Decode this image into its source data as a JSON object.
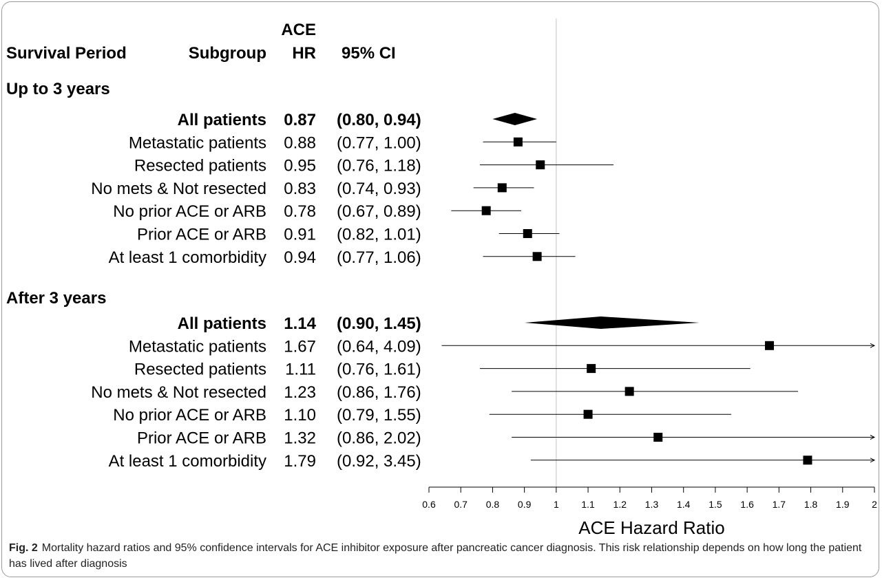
{
  "chart_data": {
    "type": "forest",
    "headers": {
      "period": "Survival Period",
      "subgroup": "Subgroup",
      "hr_line1": "ACE",
      "hr_line2": "HR",
      "ci": "95% CI"
    },
    "xlabel": "ACE Hazard Ratio",
    "xlim": [
      0.6,
      2.0
    ],
    "ticks": [
      "0.6",
      "0.7",
      "0.8",
      "0.9",
      "1",
      "1.1",
      "1.2",
      "1.3",
      "1.4",
      "1.5",
      "1.6",
      "1.7",
      "1.8",
      "1.9",
      "2"
    ],
    "reference_line": 1,
    "groups": [
      {
        "title": "Up to 3 years",
        "rows": [
          {
            "label": "All patients",
            "hr_text": "0.87",
            "ci_text": "(0.80, 0.94)",
            "hr": 0.87,
            "lo": 0.8,
            "hi": 0.94,
            "summary": true
          },
          {
            "label": "Metastatic patients",
            "hr_text": "0.88",
            "ci_text": "(0.77, 1.00)",
            "hr": 0.88,
            "lo": 0.77,
            "hi": 1.0
          },
          {
            "label": "Resected patients",
            "hr_text": "0.95",
            "ci_text": "(0.76, 1.18)",
            "hr": 0.95,
            "lo": 0.76,
            "hi": 1.18
          },
          {
            "label": "No mets & Not resected",
            "hr_text": "0.83",
            "ci_text": "(0.74, 0.93)",
            "hr": 0.83,
            "lo": 0.74,
            "hi": 0.93
          },
          {
            "label": "No prior ACE or ARB",
            "hr_text": "0.78",
            "ci_text": "(0.67, 0.89)",
            "hr": 0.78,
            "lo": 0.67,
            "hi": 0.89
          },
          {
            "label": "Prior ACE or ARB",
            "hr_text": "0.91",
            "ci_text": "(0.82, 1.01)",
            "hr": 0.91,
            "lo": 0.82,
            "hi": 1.01
          },
          {
            "label": "At least 1 comorbidity",
            "hr_text": "0.94",
            "ci_text": "(0.77, 1.06)",
            "hr": 0.94,
            "lo": 0.77,
            "hi": 1.06
          }
        ]
      },
      {
        "title": "After 3 years",
        "rows": [
          {
            "label": "All patients",
            "hr_text": "1.14",
            "ci_text": "(0.90, 1.45)",
            "hr": 1.14,
            "lo": 0.9,
            "hi": 1.45,
            "summary": true
          },
          {
            "label": "Metastatic patients",
            "hr_text": "1.67",
            "ci_text": "(0.64, 4.09)",
            "hr": 1.67,
            "lo": 0.64,
            "hi": 4.09
          },
          {
            "label": "Resected patients",
            "hr_text": "1.11",
            "ci_text": "(0.76, 1.61)",
            "hr": 1.11,
            "lo": 0.76,
            "hi": 1.61
          },
          {
            "label": "No mets & Not resected",
            "hr_text": "1.23",
            "ci_text": "(0.86, 1.76)",
            "hr": 1.23,
            "lo": 0.86,
            "hi": 1.76
          },
          {
            "label": "No prior ACE or ARB",
            "hr_text": "1.10",
            "ci_text": "(0.79, 1.55)",
            "hr": 1.1,
            "lo": 0.79,
            "hi": 1.55
          },
          {
            "label": "Prior ACE or ARB",
            "hr_text": "1.32",
            "ci_text": "(0.86, 2.02)",
            "hr": 1.32,
            "lo": 0.86,
            "hi": 2.02
          },
          {
            "label": "At least 1 comorbidity",
            "hr_text": "1.79",
            "ci_text": "(0.92, 3.45)",
            "hr": 1.79,
            "lo": 0.92,
            "hi": 3.45
          }
        ]
      }
    ]
  },
  "caption": {
    "label": "Fig. 2",
    "text": "Mortality hazard ratios and 95% confidence intervals for ACE inhibitor exposure after pancreatic cancer diagnosis. This risk relationship depends on how long the patient has lived after diagnosis"
  },
  "colors": {
    "ink": "#000000",
    "reference_line": "#cccccc",
    "caption_text": "#222222"
  }
}
